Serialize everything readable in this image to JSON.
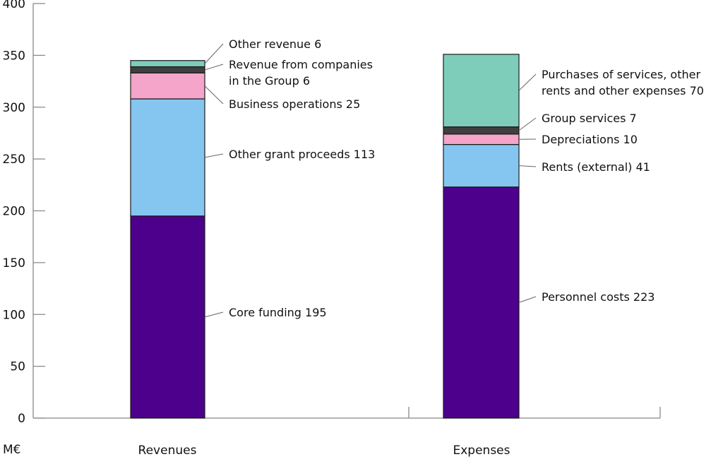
{
  "chart_data": {
    "type": "bar",
    "stacked": true,
    "ylabel": "M€",
    "ylim": [
      0,
      400
    ],
    "yticks": [
      0,
      50,
      100,
      150,
      200,
      250,
      300,
      350,
      400
    ],
    "grid": false,
    "categories": [
      "Revenues",
      "Expenses"
    ],
    "bars": [
      {
        "category": "Revenues",
        "segments": [
          {
            "label": [
              "Core funding 195"
            ],
            "value": 195,
            "color": "#4d008c"
          },
          {
            "label": [
              "Other grant proceeds 113"
            ],
            "value": 113,
            "color": "#85c6f0"
          },
          {
            "label": [
              "Business operations 25"
            ],
            "value": 25,
            "color": "#f4a5c9"
          },
          {
            "label": [
              "Revenue from companies",
              "in the Group 6"
            ],
            "value": 6,
            "color": "#3f3f3f"
          },
          {
            "label": [
              "Other revenue 6"
            ],
            "value": 6,
            "color": "#7ecdbb"
          }
        ]
      },
      {
        "category": "Expenses",
        "segments": [
          {
            "label": [
              "Personnel costs 223"
            ],
            "value": 223,
            "color": "#4d008c"
          },
          {
            "label": [
              "Rents (external) 41"
            ],
            "value": 41,
            "color": "#85c6f0"
          },
          {
            "label": [
              "Depreciations 10"
            ],
            "value": 10,
            "color": "#f4a5c9"
          },
          {
            "label": [
              "Group services 7"
            ],
            "value": 7,
            "color": "#3f3f3f"
          },
          {
            "label": [
              "Purchases of services, other",
              "rents and other expenses 70"
            ],
            "value": 70,
            "color": "#7ecdbb"
          }
        ]
      }
    ]
  }
}
